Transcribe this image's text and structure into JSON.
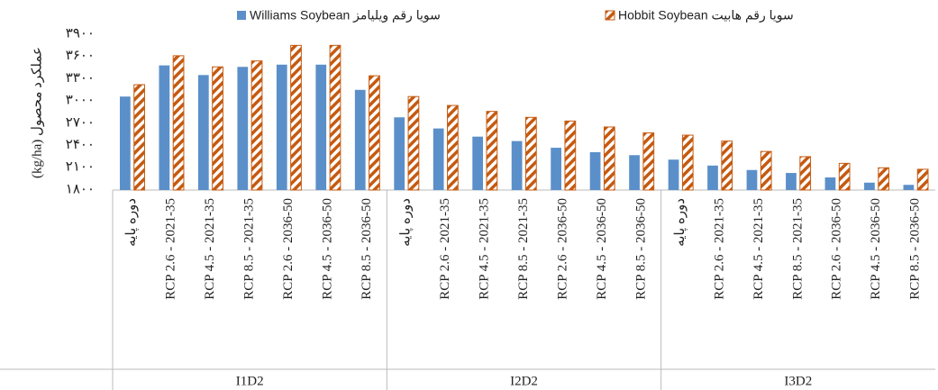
{
  "chart_data": {
    "type": "bar",
    "y_label": "عملکرد محصول (kg/ha)",
    "groups": [
      "I1D2",
      "I2D2",
      "I3D2"
    ],
    "categories": [
      "دوره پایه",
      "RCP 2.6 - 2021-35",
      "RCP 4.5 - 2021-35",
      "RCP 8.5 - 2021-35",
      "RCP 2.6 - 2036-50",
      "RCP 4.5 - 2036-50",
      "RCP 8.5 - 2036-50",
      "دوره پایه",
      "RCP 2.6 - 2021-35",
      "RCP 4.5 - 2021-35",
      "RCP 8.5 - 2021-35",
      "RCP 2.6 - 2036-50",
      "RCP 4.5 - 2036-50",
      "RCP 8.5 - 2036-50",
      "دوره پایه",
      "RCP 2.6 - 2021-35",
      "RCP 4.5 - 2021-35",
      "RCP 8.5 - 2021-35",
      "RCP 2.6 - 2036-50",
      "RCP 4.5 - 2036-50",
      "RCP 8.5 - 2036-50"
    ],
    "series": [
      {
        "name": "Williams Soybean سویا رقم ویلیامز",
        "color": "#5b8fc9",
        "values": [
          3060,
          3480,
          3350,
          3460,
          3490,
          3490,
          3150,
          2780,
          2630,
          2520,
          2460,
          2370,
          2310,
          2270,
          2210,
          2130,
          2070,
          2030,
          1970,
          1900,
          1870
        ]
      },
      {
        "name": "Hobbit Soybean سویا رقم هابیت",
        "color": "#c55a11",
        "pattern": "hatch",
        "values": [
          3220,
          3610,
          3460,
          3540,
          3750,
          3750,
          3340,
          3060,
          2940,
          2860,
          2780,
          2730,
          2650,
          2570,
          2540,
          2460,
          2320,
          2250,
          2160,
          2100,
          2080
        ]
      }
    ],
    "ylim": [
      1800,
      3900
    ],
    "yticks": [
      {
        "value": 1800,
        "label": "۱۸۰۰"
      },
      {
        "value": 2100,
        "label": "۲۱۰۰"
      },
      {
        "value": 2400,
        "label": "۲۴۰۰"
      },
      {
        "value": 2700,
        "label": "۲۷۰۰"
      },
      {
        "value": 3000,
        "label": "۳۰۰۰"
      },
      {
        "value": 3300,
        "label": "۳۳۰۰"
      },
      {
        "value": 3600,
        "label": "۳۶۰۰"
      },
      {
        "value": 3900,
        "label": "۳۹۰۰"
      }
    ],
    "grid": false
  }
}
